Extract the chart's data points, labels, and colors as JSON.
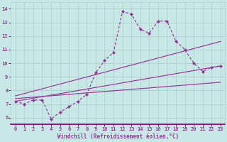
{
  "xlabel": "Windchill (Refroidissement éolien,°C)",
  "xlim": [
    -0.5,
    23.5
  ],
  "ylim": [
    5.5,
    14.5
  ],
  "xticks": [
    0,
    1,
    2,
    3,
    4,
    5,
    6,
    7,
    8,
    9,
    10,
    11,
    12,
    13,
    14,
    15,
    16,
    17,
    18,
    19,
    20,
    21,
    22,
    23
  ],
  "yticks": [
    6,
    7,
    8,
    9,
    10,
    11,
    12,
    13,
    14
  ],
  "bg_color": "#c8e8e5",
  "line_color": "#993399",
  "grid_color": "#b0d0d0",
  "main_x": [
    0,
    1,
    2,
    3,
    4,
    5,
    6,
    7,
    8,
    9,
    10,
    11,
    12,
    13,
    14,
    15,
    16,
    17,
    18,
    19,
    20,
    21,
    22,
    23
  ],
  "main_y": [
    7.2,
    7.0,
    7.3,
    7.3,
    5.9,
    6.4,
    6.8,
    7.2,
    7.7,
    9.3,
    10.2,
    10.8,
    13.8,
    13.6,
    12.5,
    12.2,
    13.1,
    13.1,
    11.6,
    11.0,
    10.0,
    9.4,
    9.7,
    9.8
  ],
  "straight_lines": [
    {
      "x": [
        0,
        23
      ],
      "y": [
        7.2,
        9.8
      ]
    },
    {
      "x": [
        0,
        23
      ],
      "y": [
        7.4,
        8.6
      ]
    },
    {
      "x": [
        0,
        23
      ],
      "y": [
        7.6,
        11.6
      ]
    }
  ]
}
